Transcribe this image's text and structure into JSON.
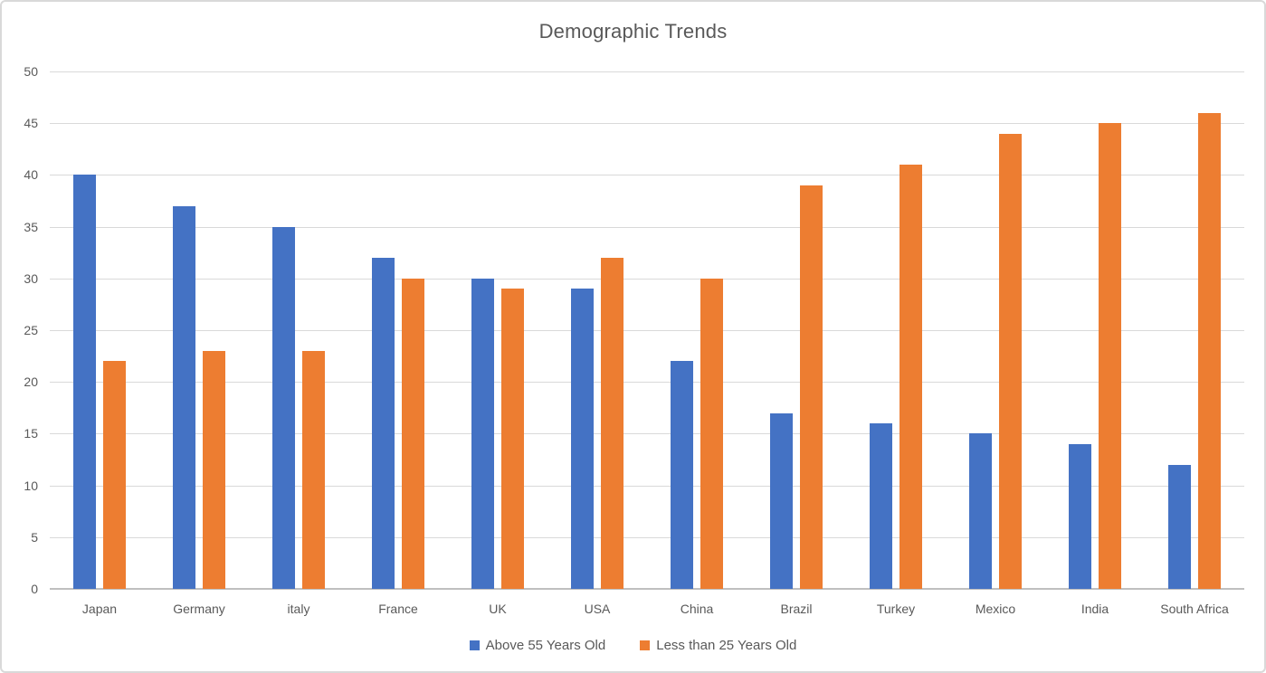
{
  "chart_data": {
    "type": "bar",
    "title": "Demographic Trends",
    "categories": [
      "Japan",
      "Germany",
      "italy",
      "France",
      "UK",
      "USA",
      "China",
      "Brazil",
      "Turkey",
      "Mexico",
      "India",
      "South Africa"
    ],
    "series": [
      {
        "name": "Above 55 Years Old",
        "color": "#4472C4",
        "values": [
          40,
          37,
          35,
          32,
          30,
          29,
          22,
          17,
          16,
          15,
          14,
          12
        ]
      },
      {
        "name": "Less than 25 Years Old",
        "color": "#ED7D31",
        "values": [
          22,
          23,
          23,
          30,
          29,
          32,
          30,
          39,
          41,
          44,
          45,
          46
        ]
      }
    ],
    "xlabel": "",
    "ylabel": "",
    "ylim": [
      0,
      50
    ],
    "ytick_step": 5,
    "ytick_labels": [
      "0",
      "5",
      "10",
      "15",
      "20",
      "25",
      "30",
      "35",
      "40",
      "45",
      "50"
    ],
    "grid": "horizontal",
    "legend_position": "bottom"
  },
  "colors": {
    "text": "#595959",
    "gridline": "#d9d9d9",
    "axis_line": "#bfbfbf",
    "frame_border": "#d9d9d9",
    "background": "#ffffff"
  }
}
